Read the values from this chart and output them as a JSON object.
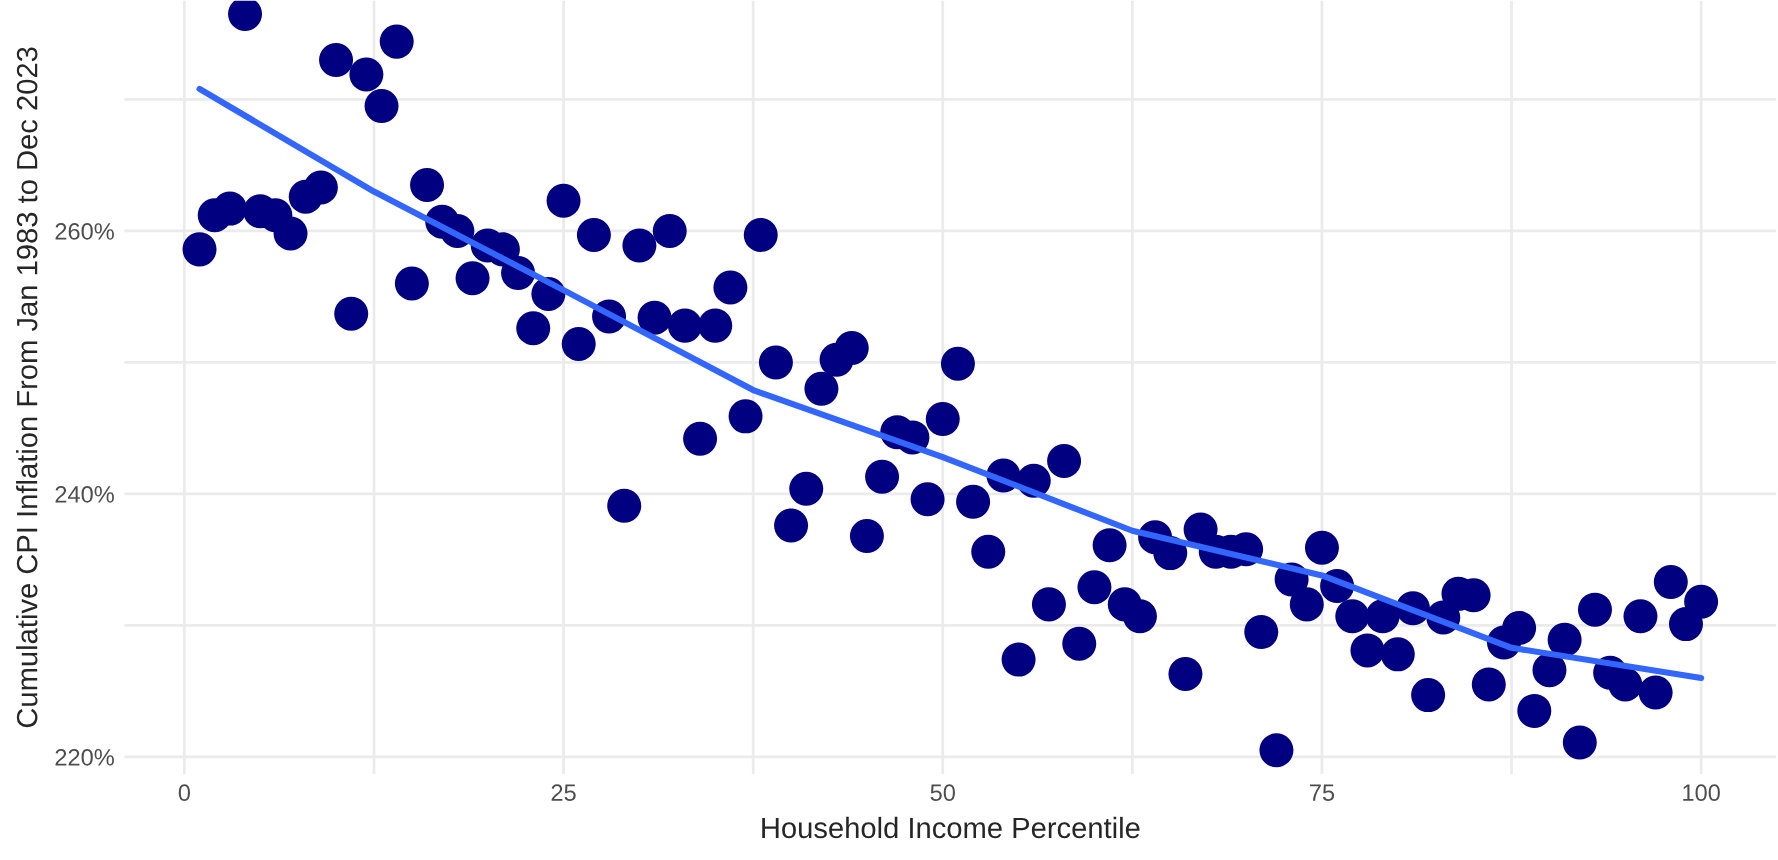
{
  "chart_data": {
    "type": "scatter",
    "xlabel": "Household Income Percentile",
    "ylabel": "Cumulative CPI Inflation From Jan 1983 to Dec 2023",
    "xlim": [
      -3.95,
      104.95
    ],
    "ylim": [
      218.7,
      277.5
    ],
    "xticks": [
      0,
      {
        "value": 12.5,
        "label": null
      },
      25,
      {
        "value": 37.5,
        "label": null
      },
      50,
      {
        "value": 62.5,
        "label": null
      },
      75,
      {
        "value": 87.5,
        "label": null
      },
      100
    ],
    "yticks": [
      {
        "value": 220,
        "label": "220%"
      },
      {
        "value": 230,
        "label": null
      },
      {
        "value": 240,
        "label": "240%"
      },
      {
        "value": 250,
        "label": null
      },
      {
        "value": 260,
        "label": "260%"
      },
      {
        "value": 270,
        "label": null
      }
    ],
    "grid": true,
    "marker": "circle",
    "series": [
      {
        "color": "#000080",
        "x": [
          1,
          2,
          3,
          4,
          5,
          6,
          7,
          8,
          9,
          10,
          11,
          12,
          13,
          14,
          15,
          16,
          17,
          18,
          19,
          20,
          21,
          22,
          23,
          24,
          25,
          26,
          27,
          28,
          29,
          30,
          31,
          32,
          33,
          34,
          35,
          36,
          37,
          38,
          39,
          40,
          41,
          42,
          43,
          44,
          45,
          46,
          47,
          48,
          49,
          50,
          51,
          52,
          53,
          54,
          55,
          56,
          57,
          58,
          59,
          60,
          61,
          62,
          63,
          64,
          65,
          66,
          67,
          68,
          69,
          70,
          71,
          72,
          73,
          74,
          75,
          76,
          77,
          78,
          79,
          80,
          81,
          82,
          83,
          84,
          85,
          86,
          87,
          88,
          89,
          90,
          91,
          92,
          93,
          94,
          95,
          96,
          97,
          98,
          99,
          100
        ],
        "values": [
          258.6,
          261.2,
          261.7,
          276.5,
          261.5,
          261.2,
          259.8,
          262.6,
          263.3,
          273.0,
          253.7,
          271.9,
          269.5,
          274.4,
          256.0,
          263.5,
          260.7,
          260.0,
          256.4,
          258.9,
          258.6,
          256.8,
          252.6,
          255.2,
          262.3,
          251.4,
          259.7,
          253.5,
          239.1,
          258.9,
          253.4,
          260.0,
          252.8,
          244.2,
          252.8,
          255.7,
          245.9,
          259.7,
          250.0,
          237.6,
          240.4,
          248.0,
          250.2,
          251.1,
          236.8,
          241.3,
          244.7,
          244.3,
          239.6,
          245.7,
          249.9,
          239.4,
          235.6,
          241.4,
          227.4,
          241.0,
          231.6,
          242.5,
          228.6,
          232.9,
          236.1,
          231.6,
          230.7,
          236.7,
          235.5,
          226.3,
          237.3,
          235.6,
          235.6,
          235.8,
          229.5,
          220.5,
          233.5,
          231.6,
          235.9,
          233.0,
          230.7,
          228.1,
          230.7,
          227.8,
          231.3,
          224.7,
          230.6,
          232.4,
          232.3,
          225.5,
          228.7,
          229.8,
          223.5,
          226.6,
          228.9,
          221.1,
          231.2,
          226.4,
          225.5,
          230.7,
          224.9,
          233.3,
          230.1,
          231.8
        ]
      },
      {
        "type": "line",
        "color": "#3366ff",
        "marker": "none",
        "line_style": "solid",
        "x": [
          1,
          12.5,
          25,
          37.5,
          50,
          62.5,
          75,
          87.5,
          100
        ],
        "values": [
          270.8,
          263.0,
          255.5,
          247.9,
          242.8,
          237.2,
          233.8,
          228.3,
          226.0
        ]
      }
    ]
  }
}
